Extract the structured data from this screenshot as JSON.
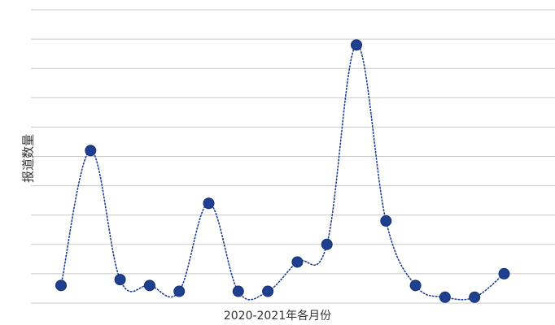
{
  "chart_data": {
    "type": "line",
    "title": "",
    "xlabel": "2020-2021年各月份",
    "ylabel": "报道数量",
    "ylim": [
      0,
      100
    ],
    "grid": true,
    "line_style": "dotted",
    "colors": {
      "series": "#1f3f8f",
      "grid": "#c8c8c8"
    },
    "series": [
      {
        "name": "",
        "values": [
          6,
          52,
          8,
          6,
          4,
          34,
          4,
          4,
          14,
          20,
          88,
          28,
          6,
          2,
          2,
          10
        ]
      }
    ]
  }
}
